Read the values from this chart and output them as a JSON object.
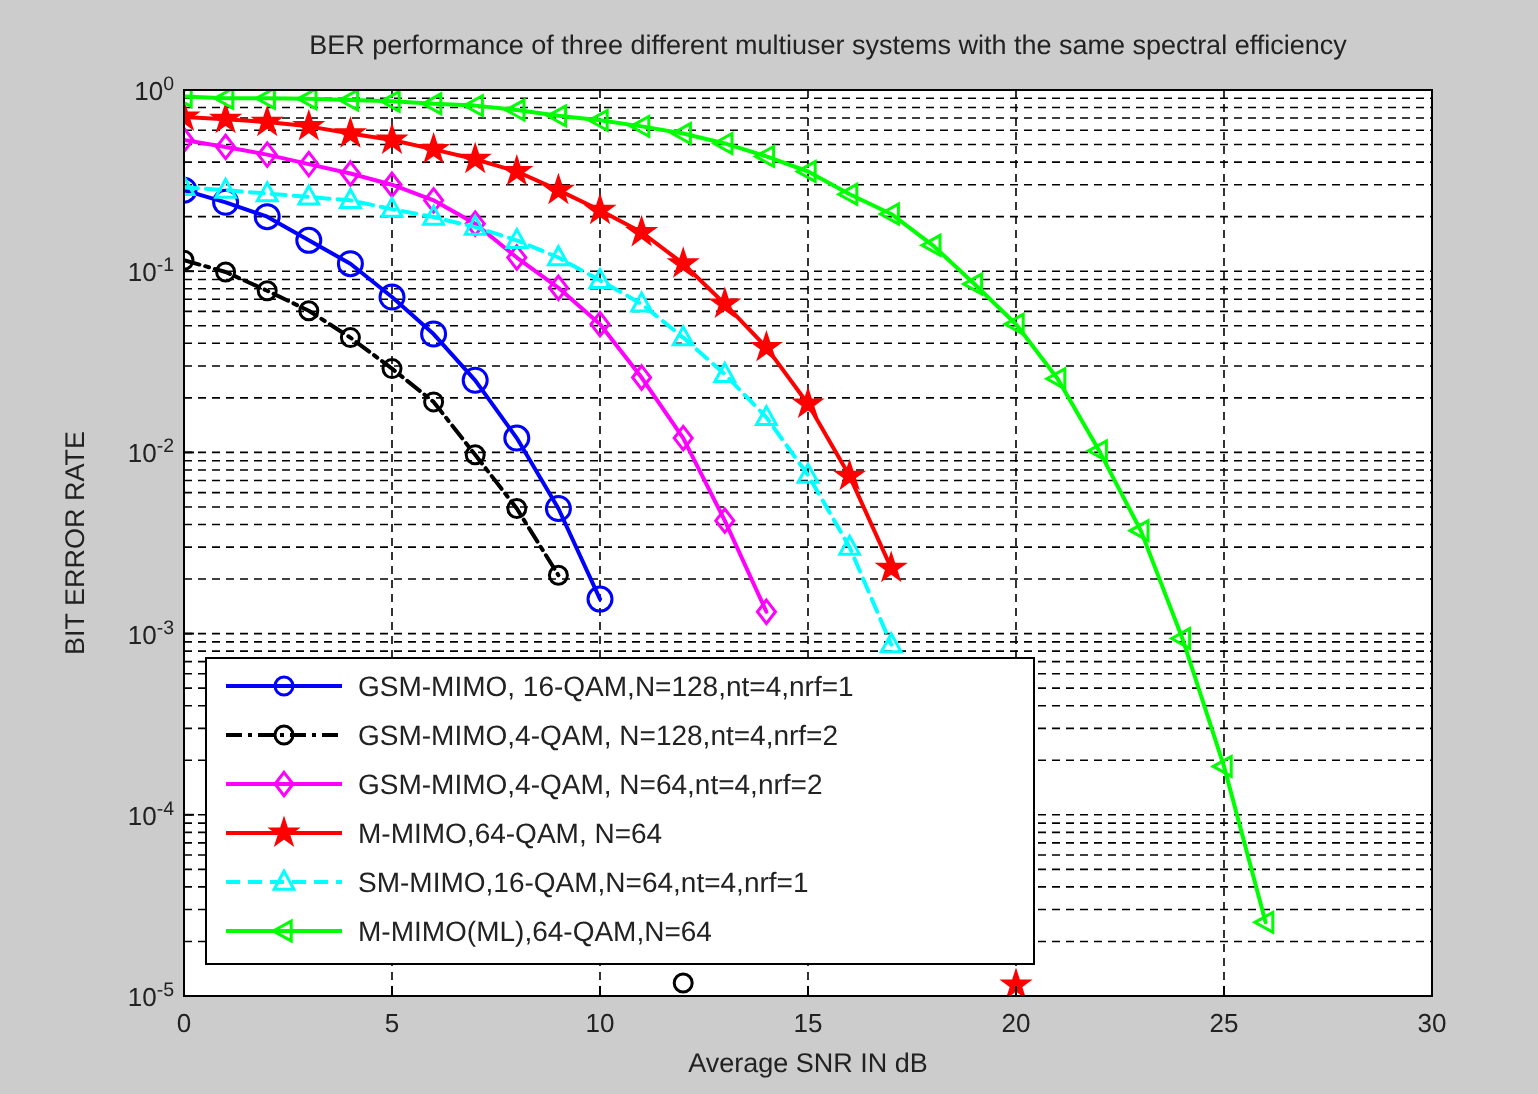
{
  "chart_data": {
    "type": "line",
    "title": "BER performance of three different multiuser systems with the same spectral efficiency",
    "xlabel": "Average SNR IN dB",
    "ylabel": "BIT ERROR RATE",
    "xlim": [
      0,
      30
    ],
    "xticks": [
      0,
      5,
      10,
      15,
      20,
      25,
      30
    ],
    "ylim": [
      1e-05,
      1
    ],
    "log": "y",
    "yticks": [
      {
        "value": 1e-05,
        "label": "10$^{-5}$"
      },
      {
        "value": 0.0001,
        "label": "10$^{-4}$"
      },
      {
        "value": 0.001,
        "label": "10$^{-3}$"
      },
      {
        "value": 0.01,
        "label": "10$^{-2}$"
      },
      {
        "value": 0.1,
        "label": "10$^{-1}$"
      },
      {
        "value": 1,
        "label": "10$^{0}$"
      }
    ],
    "grid": true,
    "legend": "bottom left",
    "series": [
      {
        "name": "GSM-MIMO, 16-QAM,N=128,nt=4,nrf=1",
        "color": "#0000ff",
        "marker": "circle",
        "line_style": "solid",
        "x": [
          0,
          1,
          2,
          3,
          4,
          5,
          6,
          7,
          8,
          9,
          10
        ],
        "values": [
          0.28,
          0.24,
          0.2,
          0.148,
          0.11,
          0.072,
          0.045,
          0.025,
          0.012,
          0.0049,
          0.00155
        ]
      },
      {
        "name": "GSM-MIMO,4-QAM, N=128,nt=4,nrf=2",
        "color": "#000000",
        "marker": "circle",
        "line_style": "dashdot",
        "x": [
          0,
          1,
          2,
          3,
          4,
          5,
          6,
          7,
          8,
          9,
          10,
          11,
          12
        ],
        "values": [
          0.115,
          0.099,
          0.078,
          0.0605,
          0.043,
          0.029,
          0.019,
          0.0097,
          0.0049,
          0.0021,
          null,
          null,
          1.18e-05
        ]
      },
      {
        "name": "GSM-MIMO,4-QAM, N=64,nt=4,nrf=2",
        "color": "#ff00ff",
        "marker": "diamond",
        "line_style": "solid",
        "x": [
          0,
          1,
          2,
          3,
          4,
          5,
          6,
          7,
          8,
          9,
          10,
          11,
          12,
          13,
          14
        ],
        "values": [
          0.53,
          0.485,
          0.44,
          0.39,
          0.346,
          0.3,
          0.246,
          0.183,
          0.119,
          0.081,
          0.051,
          0.0259,
          0.012,
          0.0042,
          0.00132
        ]
      },
      {
        "name": "M-MIMO,64-QAM, N=64",
        "color": "#ff0000",
        "marker": "star",
        "line_style": "solid",
        "x": [
          0,
          1,
          2,
          3,
          4,
          5,
          6,
          7,
          8,
          9,
          10,
          11,
          12,
          13,
          14,
          15,
          16,
          17,
          18,
          19,
          20
        ],
        "values": [
          0.71,
          0.69,
          0.665,
          0.63,
          0.575,
          0.53,
          0.47,
          0.415,
          0.355,
          0.28,
          0.217,
          0.164,
          0.11,
          0.066,
          0.038,
          0.0185,
          0.0074,
          0.0023,
          null,
          null,
          1.15e-05
        ]
      },
      {
        "name": "SM-MIMO,16-QAM,N=64,nt=4,nrf=1",
        "color": "#00ffff",
        "marker": "triangle",
        "line_style": "dashed",
        "x": [
          0,
          1,
          2,
          3,
          4,
          5,
          6,
          7,
          8,
          9,
          10,
          11,
          12,
          13,
          14,
          15,
          16,
          17
        ],
        "values": [
          0.29,
          0.28,
          0.268,
          0.257,
          0.246,
          0.22,
          0.199,
          0.175,
          0.148,
          0.119,
          0.089,
          0.066,
          0.043,
          0.027,
          0.0156,
          0.0075,
          0.003,
          0.00087
        ]
      },
      {
        "name": "M-MIMO(ML),64-QAM,N=64",
        "color": "#00ff00",
        "marker": "triangle-left",
        "line_style": "solid",
        "x": [
          0,
          1,
          2,
          3,
          4,
          5,
          6,
          7,
          8,
          9,
          10,
          11,
          12,
          13,
          14,
          15,
          16,
          17,
          18,
          19,
          20,
          21,
          22,
          23,
          24,
          25,
          26
        ],
        "values": [
          0.92,
          0.9,
          0.9,
          0.895,
          0.88,
          0.866,
          0.84,
          0.82,
          0.775,
          0.72,
          0.68,
          0.63,
          0.575,
          0.507,
          0.43,
          0.355,
          0.266,
          0.207,
          0.139,
          0.085,
          0.051,
          0.0255,
          0.0102,
          0.0037,
          0.00094,
          0.000185,
          2.55e-05
        ]
      }
    ]
  }
}
